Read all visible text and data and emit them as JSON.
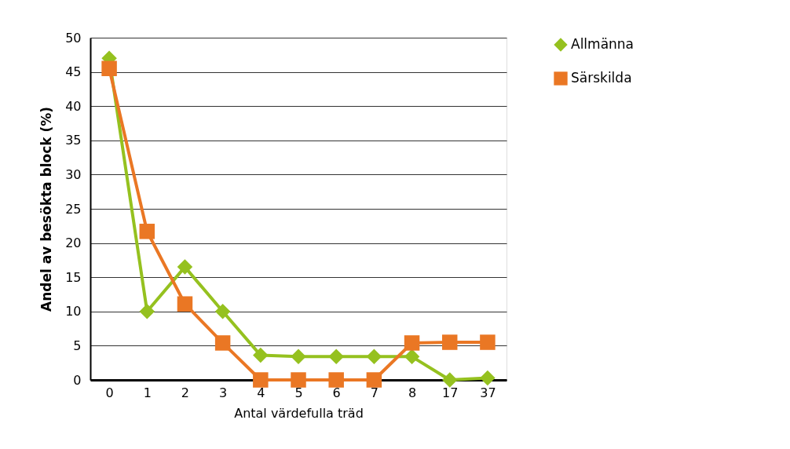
{
  "chart_data": {
    "type": "line",
    "xlabel": "Antal värdefulla träd",
    "ylabel": "Andel av besökta block (%)",
    "categories": [
      "0",
      "1",
      "2",
      "3",
      "4",
      "5",
      "6",
      "7",
      "8",
      "17",
      "37"
    ],
    "series": [
      {
        "name": "Allmänna",
        "color": "#95c11f",
        "marker": "diamond",
        "values": [
          47,
          10,
          16.5,
          10,
          3.6,
          3.4,
          3.4,
          3.4,
          3.4,
          0,
          0.3
        ]
      },
      {
        "name": "Särskilda",
        "color": "#ea7724",
        "marker": "square",
        "values": [
          45.5,
          21.7,
          11.1,
          5.4,
          0,
          0,
          0,
          0,
          5.4,
          5.5,
          5.5
        ]
      }
    ],
    "ylim": [
      0,
      50
    ],
    "yticks": [
      0,
      5,
      10,
      15,
      20,
      25,
      30,
      35,
      40,
      45,
      50
    ],
    "grid": "y",
    "legend": "top right",
    "line_style": "solid"
  }
}
